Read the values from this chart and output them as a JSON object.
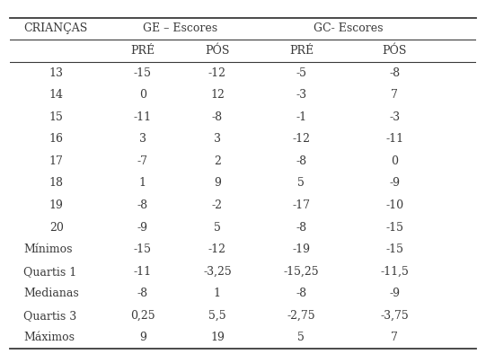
{
  "col_headers_row1": [
    "CRIANÇAS",
    "GE – Escores",
    "GC- Escores"
  ],
  "col_headers_row2": [
    "PRÉ",
    "PÓS",
    "PRÉ",
    "PÓS"
  ],
  "rows": [
    [
      "13",
      "-15",
      "-12",
      "-5",
      "-8"
    ],
    [
      "14",
      "0",
      "12",
      "-3",
      "7"
    ],
    [
      "15",
      "-11",
      "-8",
      "-1",
      "-3"
    ],
    [
      "16",
      "3",
      "3",
      "-12",
      "-11"
    ],
    [
      "17",
      "-7",
      "2",
      "-8",
      "0"
    ],
    [
      "18",
      "1",
      "9",
      "5",
      "-9"
    ],
    [
      "19",
      "-8",
      "-2",
      "-17",
      "-10"
    ],
    [
      "20",
      "-9",
      "5",
      "-8",
      "-15"
    ],
    [
      "Mínimos",
      "-15",
      "-12",
      "-19",
      "-15"
    ],
    [
      "Quartis 1",
      "-11",
      "-3,25",
      "-15,25",
      "-11,5"
    ],
    [
      "Medianas",
      "-8",
      "1",
      "-8",
      "-9"
    ],
    [
      "Quartis 3",
      "0,25",
      "5,5",
      "-2,75",
      "-3,75"
    ],
    [
      "Máximos",
      "9",
      "19",
      "5",
      "7"
    ]
  ],
  "background_color": "#ffffff",
  "text_color": "#3a3a3a",
  "font_size": 9.0,
  "header_font_size": 9.0,
  "fig_width": 5.41,
  "fig_height": 4.04,
  "dpi": 100
}
